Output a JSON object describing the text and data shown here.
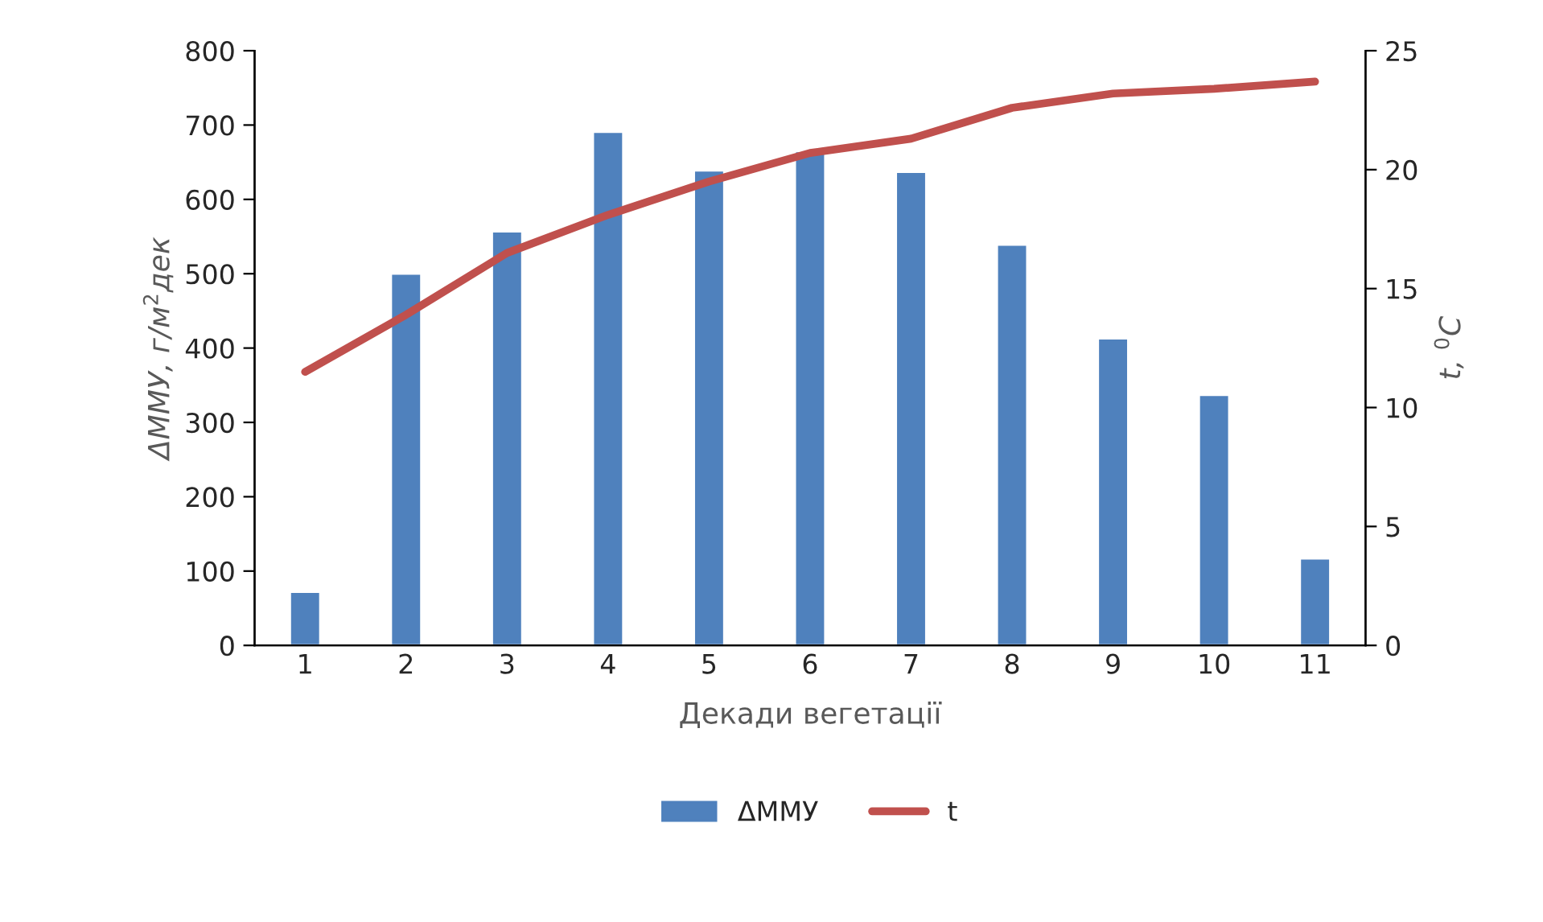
{
  "chart_data": {
    "type": "bar",
    "xlabel": "Декади вегетації",
    "ylabel": "ΔММУ, г/м$^{2}$дек",
    "y2label": "t, $^{0}$C",
    "categories": [
      "1",
      "2",
      "3",
      "4",
      "5",
      "6",
      "7",
      "8",
      "9",
      "10",
      "11"
    ],
    "series": [
      {
        "name": "ΔММУ",
        "color": "#4f81bd",
        "values": [
          72,
          500,
          557,
          691,
          639,
          665,
          637,
          539,
          413,
          337,
          117
        ]
      },
      {
        "name": "t",
        "type": "line",
        "axis": "y2",
        "color": "#c0504d",
        "values": [
          11.5,
          13.9,
          16.5,
          18.1,
          19.5,
          20.7,
          21.3,
          22.6,
          23.2,
          23.4,
          23.7
        ]
      }
    ],
    "ylim": [
      0,
      800
    ],
    "yticks": [
      0,
      100,
      200,
      300,
      400,
      500,
      600,
      700,
      800
    ],
    "y2lim": [
      0,
      25
    ],
    "y2ticks": [
      0,
      5,
      10,
      15,
      20,
      25
    ],
    "grid": false,
    "legend": "bottom",
    "marker": "none",
    "line_style": "solid"
  }
}
